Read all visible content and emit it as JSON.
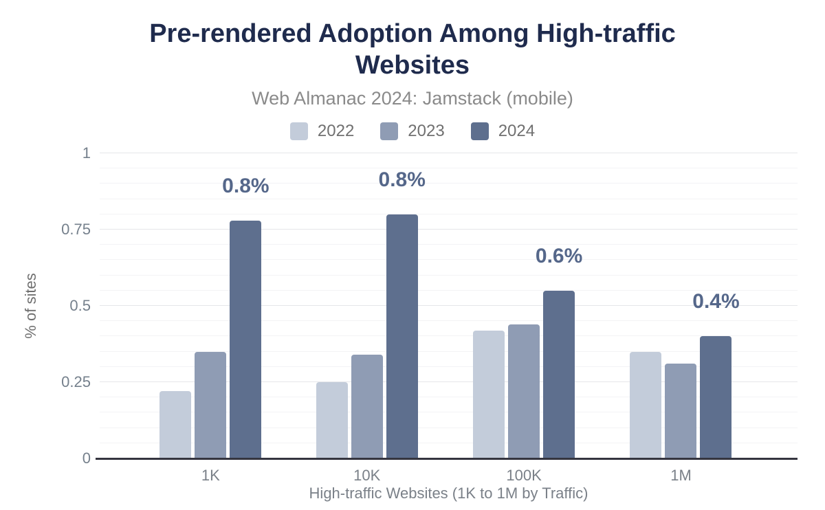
{
  "header": {
    "title": "Pre-rendered Adoption Among High-traffic Websites",
    "subtitle": "Web Almanac 2024: Jamstack (mobile)"
  },
  "chart_data": {
    "type": "bar",
    "title": "Pre-rendered Adoption Among High-traffic Websites",
    "subtitle": "Web Almanac 2024: Jamstack (mobile)",
    "categories": [
      "1K",
      "10K",
      "100K",
      "1M"
    ],
    "series": [
      {
        "name": "2022",
        "color": "#c3ccda",
        "values": [
          0.22,
          0.25,
          0.42,
          0.35
        ]
      },
      {
        "name": "2023",
        "color": "#8f9cb4",
        "values": [
          0.35,
          0.34,
          0.44,
          0.31
        ]
      },
      {
        "name": "2024",
        "color": "#5e6f8e",
        "values": [
          0.78,
          0.8,
          0.55,
          0.4
        ]
      }
    ],
    "annotations": [
      {
        "category": "1K",
        "series": "2024",
        "text": "0.8%"
      },
      {
        "category": "10K",
        "series": "2024",
        "text": "0.8%"
      },
      {
        "category": "100K",
        "series": "2024",
        "text": "0.6%"
      },
      {
        "category": "1M",
        "series": "2024",
        "text": "0.4%"
      }
    ],
    "xlabel": "High-traffic Websites (1K to 1M by Traffic)",
    "ylabel": "% of sites",
    "ylim": [
      0,
      1
    ],
    "yticks": [
      0,
      0.25,
      0.5,
      0.75,
      1
    ],
    "ytick_labels": [
      "0",
      "0.25",
      "0.5",
      "0.75",
      "1"
    ],
    "grid": {
      "orientation": "horizontal",
      "minor_step": 0.05,
      "major_step": 0.25
    },
    "legend_position": "top",
    "group_centers_pct": [
      15.9,
      38.3,
      60.8,
      83.3
    ]
  },
  "colors": {
    "background": "#ffffff",
    "title": "#1f2b4d",
    "subtitle": "#8a8a8a",
    "legend_text": "#707070",
    "tick_text": "#75808c",
    "axis_title_text": "#7a8088",
    "grid_minor": "#f3f3f5",
    "grid_major": "#e5e6e9",
    "axis_line": "#35353f",
    "annotation_text": "#55678a"
  }
}
